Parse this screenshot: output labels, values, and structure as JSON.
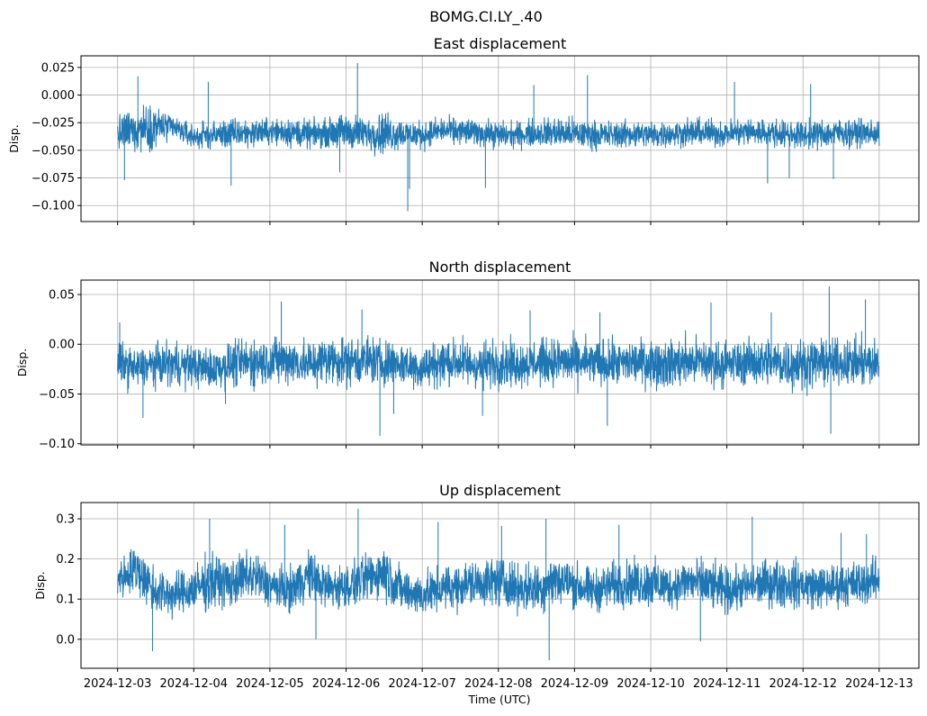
{
  "figure": {
    "suptitle": "BOMG.CI.LY_.40",
    "xlabel": "Time (UTC)"
  },
  "colors": {
    "series": "#1f77b4",
    "grid": "#b0b0b0",
    "axes": "#000000"
  },
  "chart_data": [
    {
      "type": "line",
      "title": "East displacement",
      "ylabel": "Disp.",
      "xlabel": "",
      "xlim": [
        "2024-12-02 12:28",
        "2024-12-13 12:31"
      ],
      "ylim": [
        -0.1145,
        0.0355
      ],
      "x_ticks": [
        "2024-12-03",
        "2024-12-04",
        "2024-12-05",
        "2024-12-06",
        "2024-12-07",
        "2024-12-08",
        "2024-12-09",
        "2024-12-10",
        "2024-12-11",
        "2024-12-12",
        "2024-12-13"
      ],
      "x_tick_labels_visible": false,
      "y_ticks": [
        0.025,
        0.0,
        -0.025,
        -0.05,
        -0.075,
        -0.1
      ],
      "y_tick_labels": [
        "0.025",
        "0.000",
        "−0.025",
        "−0.050",
        "−0.075",
        "−0.100"
      ],
      "grid": true,
      "series": [
        {
          "x_start": "2024-12-03",
          "x_end": "2024-12-13",
          "base": [
            -0.036,
            -0.03,
            -0.028,
            -0.03,
            -0.038,
            -0.036,
            -0.035,
            -0.034,
            -0.033,
            -0.033,
            -0.036,
            -0.034,
            -0.033,
            -0.035,
            -0.034,
            -0.035,
            -0.036,
            -0.032,
            -0.033,
            -0.034,
            -0.036,
            -0.036,
            -0.034,
            -0.034,
            -0.035,
            -0.036,
            -0.036,
            -0.035,
            -0.036,
            -0.035,
            -0.034,
            -0.034,
            -0.035,
            -0.033,
            -0.034,
            -0.035,
            -0.036,
            -0.035,
            -0.034,
            -0.034,
            -0.035
          ],
          "amplitude": [
            0.018,
            0.024,
            0.022,
            0.012,
            0.013,
            0.013,
            0.016,
            0.014,
            0.013,
            0.016,
            0.014,
            0.014,
            0.019,
            0.016,
            0.022,
            0.015,
            0.014,
            0.013,
            0.014,
            0.013,
            0.014,
            0.013,
            0.014,
            0.016,
            0.016,
            0.014,
            0.014,
            0.014,
            0.014,
            0.013,
            0.014,
            0.014,
            0.013,
            0.015,
            0.014,
            0.014,
            0.014,
            0.015,
            0.014,
            0.014,
            0.014
          ],
          "extremes": [
            {
              "x": "2024-12-03 02:10",
              "y": -0.077
            },
            {
              "x": "2024-12-03 06:24",
              "y": 0.017
            },
            {
              "x": "2024-12-04 04:34",
              "y": 0.012
            },
            {
              "x": "2024-12-04 11:46",
              "y": -0.082
            },
            {
              "x": "2024-12-05 22:00",
              "y": -0.07
            },
            {
              "x": "2024-12-06 03:36",
              "y": 0.029
            },
            {
              "x": "2024-12-06 19:26",
              "y": -0.105
            },
            {
              "x": "2024-12-06 20:00",
              "y": -0.085
            },
            {
              "x": "2024-12-07 19:55",
              "y": -0.084
            },
            {
              "x": "2024-12-08 11:10",
              "y": 0.009
            },
            {
              "x": "2024-12-09 04:05",
              "y": 0.018
            },
            {
              "x": "2024-12-11 02:24",
              "y": 0.012
            },
            {
              "x": "2024-12-11 12:50",
              "y": -0.08
            },
            {
              "x": "2024-12-11 19:40",
              "y": -0.075
            },
            {
              "x": "2024-12-12 02:24",
              "y": 0.01
            },
            {
              "x": "2024-12-12 09:35",
              "y": -0.076
            }
          ]
        }
      ]
    },
    {
      "type": "line",
      "title": "North displacement",
      "ylabel": "Disp.",
      "xlabel": "",
      "xlim": [
        "2024-12-02 12:28",
        "2024-12-13 12:31"
      ],
      "ylim": [
        -0.1012,
        0.0645
      ],
      "x_ticks": [
        "2024-12-03",
        "2024-12-04",
        "2024-12-05",
        "2024-12-06",
        "2024-12-07",
        "2024-12-08",
        "2024-12-09",
        "2024-12-10",
        "2024-12-11",
        "2024-12-12",
        "2024-12-13"
      ],
      "x_tick_labels_visible": false,
      "y_ticks": [
        0.05,
        0.0,
        -0.05,
        -0.1
      ],
      "y_tick_labels": [
        "0.05",
        "0.00",
        "−0.05",
        "−0.10"
      ],
      "grid": true,
      "series": [
        {
          "x_start": "2024-12-03",
          "x_end": "2024-12-13",
          "base": [
            -0.018,
            -0.025,
            -0.02,
            -0.02,
            -0.022,
            -0.025,
            -0.02,
            -0.018,
            -0.017,
            -0.016,
            -0.02,
            -0.015,
            -0.017,
            -0.016,
            -0.018,
            -0.02,
            -0.024,
            -0.018,
            -0.018,
            -0.022,
            -0.018,
            -0.02,
            -0.018,
            -0.017,
            -0.018,
            -0.019,
            -0.02,
            -0.018,
            -0.018,
            -0.02,
            -0.017,
            -0.018,
            -0.02,
            -0.018,
            -0.017,
            -0.019,
            -0.02,
            -0.018,
            -0.018,
            -0.019,
            -0.02
          ],
          "amplitude": [
            0.025,
            0.022,
            0.023,
            0.025,
            0.023,
            0.023,
            0.025,
            0.028,
            0.027,
            0.027,
            0.027,
            0.028,
            0.028,
            0.028,
            0.026,
            0.025,
            0.025,
            0.027,
            0.027,
            0.026,
            0.028,
            0.025,
            0.026,
            0.026,
            0.027,
            0.027,
            0.026,
            0.025,
            0.027,
            0.028,
            0.028,
            0.027,
            0.026,
            0.025,
            0.027,
            0.03,
            0.028,
            0.026,
            0.025,
            0.028,
            0.027
          ],
          "extremes": [
            {
              "x": "2024-12-03 00:40",
              "y": 0.022
            },
            {
              "x": "2024-12-03 08:00",
              "y": -0.074
            },
            {
              "x": "2024-12-04 10:00",
              "y": -0.06
            },
            {
              "x": "2024-12-05 03:36",
              "y": 0.043
            },
            {
              "x": "2024-12-06 05:00",
              "y": 0.035
            },
            {
              "x": "2024-12-06 10:40",
              "y": -0.092
            },
            {
              "x": "2024-12-06 15:00",
              "y": -0.07
            },
            {
              "x": "2024-12-07 19:00",
              "y": -0.072
            },
            {
              "x": "2024-12-08 10:00",
              "y": 0.034
            },
            {
              "x": "2024-12-09 08:00",
              "y": 0.032
            },
            {
              "x": "2024-12-09 10:20",
              "y": -0.082
            },
            {
              "x": "2024-12-10 19:00",
              "y": 0.042
            },
            {
              "x": "2024-12-11 14:00",
              "y": 0.032
            },
            {
              "x": "2024-12-12 08:15",
              "y": 0.058
            },
            {
              "x": "2024-12-12 08:45",
              "y": -0.09
            },
            {
              "x": "2024-12-12 19:40",
              "y": 0.045
            }
          ]
        }
      ]
    },
    {
      "type": "line",
      "title": "Up displacement",
      "ylabel": "Disp.",
      "xlabel": "Time (UTC)",
      "xlim": [
        "2024-12-02 12:28",
        "2024-12-13 12:31"
      ],
      "ylim": [
        -0.0722,
        0.3404
      ],
      "x_ticks": [
        "2024-12-03",
        "2024-12-04",
        "2024-12-05",
        "2024-12-06",
        "2024-12-07",
        "2024-12-08",
        "2024-12-09",
        "2024-12-10",
        "2024-12-11",
        "2024-12-12",
        "2024-12-13"
      ],
      "x_tick_labels": [
        "2024-12-03",
        "2024-12-04",
        "2024-12-05",
        "2024-12-06",
        "2024-12-07",
        "2024-12-08",
        "2024-12-09",
        "2024-12-10",
        "2024-12-11",
        "2024-12-12",
        "2024-12-13"
      ],
      "y_ticks": [
        0.3,
        0.2,
        0.1,
        0.0
      ],
      "y_tick_labels": [
        "0.3",
        "0.2",
        "0.1",
        "0.0"
      ],
      "grid": true,
      "series": [
        {
          "x_start": "2024-12-03",
          "x_end": "2024-12-13",
          "base": [
            0.15,
            0.175,
            0.12,
            0.11,
            0.125,
            0.145,
            0.14,
            0.16,
            0.135,
            0.12,
            0.16,
            0.13,
            0.13,
            0.15,
            0.17,
            0.12,
            0.11,
            0.125,
            0.135,
            0.14,
            0.145,
            0.13,
            0.125,
            0.15,
            0.135,
            0.12,
            0.135,
            0.14,
            0.14,
            0.13,
            0.145,
            0.135,
            0.12,
            0.13,
            0.14,
            0.14,
            0.135,
            0.13,
            0.135,
            0.14,
            0.15
          ],
          "amplitude": [
            0.055,
            0.07,
            0.07,
            0.06,
            0.065,
            0.08,
            0.065,
            0.075,
            0.06,
            0.06,
            0.07,
            0.065,
            0.06,
            0.065,
            0.08,
            0.06,
            0.06,
            0.06,
            0.065,
            0.065,
            0.07,
            0.065,
            0.07,
            0.075,
            0.065,
            0.06,
            0.065,
            0.065,
            0.07,
            0.06,
            0.065,
            0.07,
            0.065,
            0.06,
            0.065,
            0.07,
            0.065,
            0.06,
            0.06,
            0.065,
            0.06
          ],
          "extremes": [
            {
              "x": "2024-12-03 11:00",
              "y": -0.03
            },
            {
              "x": "2024-12-04 05:00",
              "y": 0.3
            },
            {
              "x": "2024-12-05 04:40",
              "y": 0.285
            },
            {
              "x": "2024-12-05 14:30",
              "y": 0.0
            },
            {
              "x": "2024-12-06 03:48",
              "y": 0.325
            },
            {
              "x": "2024-12-07 05:00",
              "y": 0.292
            },
            {
              "x": "2024-12-08 01:00",
              "y": 0.282
            },
            {
              "x": "2024-12-08 15:00",
              "y": 0.3
            },
            {
              "x": "2024-12-08 16:00",
              "y": -0.052
            },
            {
              "x": "2024-12-09 14:00",
              "y": 0.285
            },
            {
              "x": "2024-12-10 15:40",
              "y": -0.005
            },
            {
              "x": "2024-12-11 08:00",
              "y": 0.305
            },
            {
              "x": "2024-12-12 12:00",
              "y": 0.265
            },
            {
              "x": "2024-12-12 20:00",
              "y": 0.262
            }
          ]
        }
      ]
    }
  ]
}
